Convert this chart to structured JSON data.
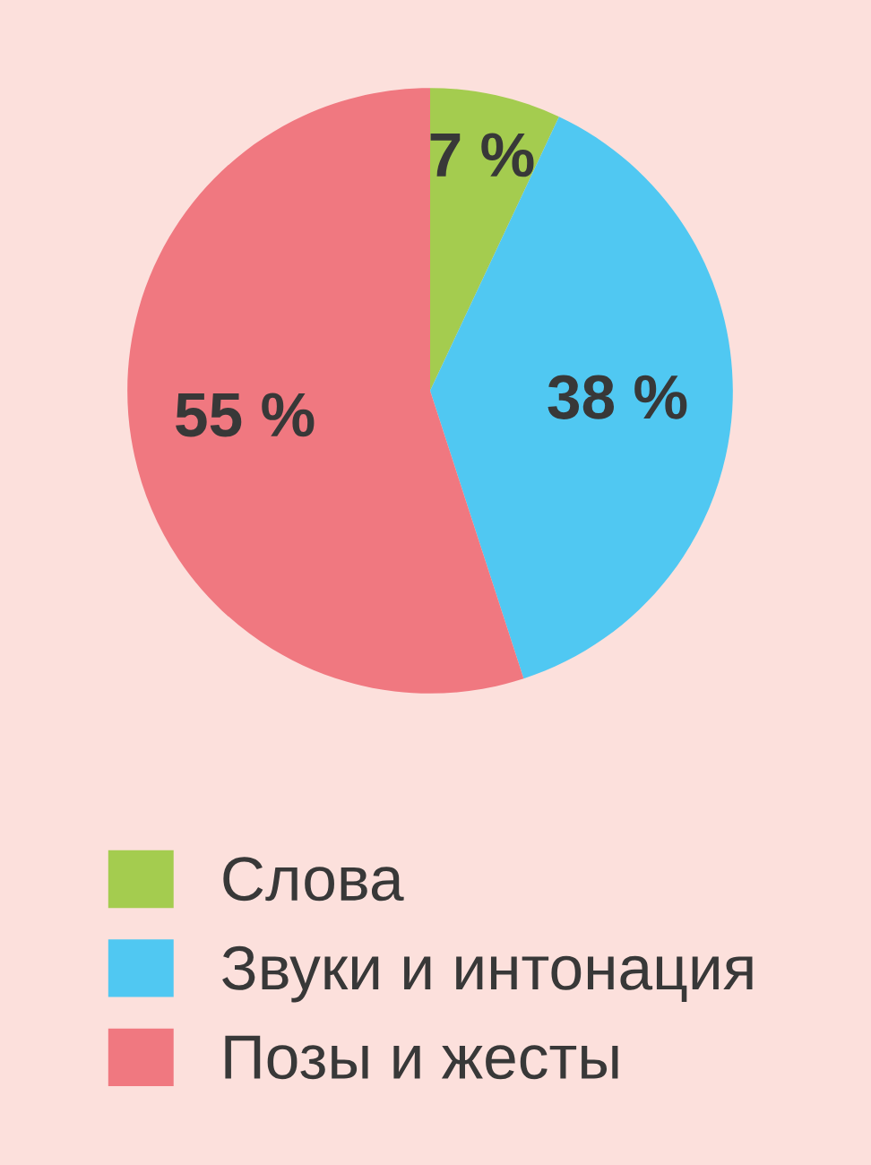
{
  "chart_data": {
    "type": "pie",
    "categories": [
      "Слова",
      "Звуки и интонация",
      "Позы и жесты"
    ],
    "values": [
      7,
      38,
      55
    ],
    "colors": [
      "#a4cc4f",
      "#50c8f2",
      "#f07880"
    ],
    "value_labels": [
      "7 %",
      "38 %",
      "55 %"
    ],
    "legend": "bottom"
  }
}
